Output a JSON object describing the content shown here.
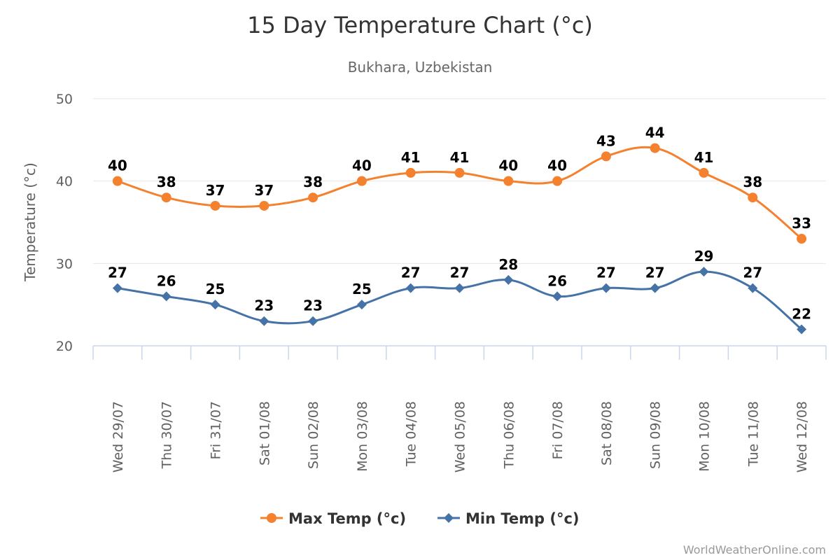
{
  "chart_data": {
    "type": "line",
    "title": "15 Day Temperature Chart (°c)",
    "subtitle": "Bukhara, Uzbekistan",
    "ylabel": "Temperature (°c)",
    "xlabel": "",
    "ylim": [
      20,
      50
    ],
    "yticks": [
      20,
      30,
      40,
      50
    ],
    "grid": true,
    "legend_position": "bottom-center",
    "categories": [
      "Wed 29/07",
      "Thu 30/07",
      "Fri 31/07",
      "Sat 01/08",
      "Sun 02/08",
      "Mon 03/08",
      "Tue 04/08",
      "Wed 05/08",
      "Thu 06/08",
      "Fri 07/08",
      "Sat 08/08",
      "Sun 09/08",
      "Mon 10/08",
      "Tue 11/08",
      "Wed 12/08"
    ],
    "series": [
      {
        "name": "Max Temp (°c)",
        "color": "#f4812e",
        "marker": "circle",
        "values": [
          40,
          38,
          37,
          37,
          38,
          40,
          41,
          41,
          40,
          40,
          43,
          44,
          41,
          38,
          33
        ]
      },
      {
        "name": "Min Temp (°c)",
        "color": "#4572a7",
        "marker": "diamond",
        "values": [
          27,
          26,
          25,
          23,
          23,
          25,
          27,
          27,
          28,
          26,
          27,
          27,
          29,
          27,
          22
        ]
      }
    ]
  },
  "credit": "WorldWeatherOnline.com"
}
